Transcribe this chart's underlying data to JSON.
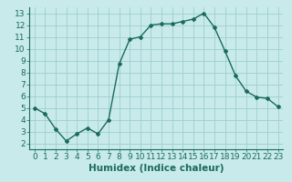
{
  "x": [
    0,
    1,
    2,
    3,
    4,
    5,
    6,
    7,
    8,
    9,
    10,
    11,
    12,
    13,
    14,
    15,
    16,
    17,
    18,
    19,
    20,
    21,
    22,
    23
  ],
  "y": [
    5.0,
    4.5,
    3.2,
    2.2,
    2.8,
    3.3,
    2.8,
    4.0,
    8.7,
    10.8,
    11.0,
    12.0,
    12.1,
    12.1,
    12.3,
    12.5,
    13.0,
    11.8,
    9.8,
    7.7,
    6.4,
    5.9,
    5.8,
    5.1
  ],
  "line_color": "#1a6b5a",
  "marker": "D",
  "marker_size": 2.0,
  "line_width": 1.0,
  "xlabel": "Humidex (Indice chaleur)",
  "xlim": [
    -0.5,
    23.5
  ],
  "ylim": [
    1.5,
    13.5
  ],
  "yticks": [
    2,
    3,
    4,
    5,
    6,
    7,
    8,
    9,
    10,
    11,
    12,
    13
  ],
  "xticks": [
    0,
    1,
    2,
    3,
    4,
    5,
    6,
    7,
    8,
    9,
    10,
    11,
    12,
    13,
    14,
    15,
    16,
    17,
    18,
    19,
    20,
    21,
    22,
    23
  ],
  "bg_color": "#c8eaea",
  "grid_color": "#9ecece",
  "fig_bg": "#c8eaea",
  "xlabel_fontsize": 7.5,
  "tick_fontsize": 6.5
}
